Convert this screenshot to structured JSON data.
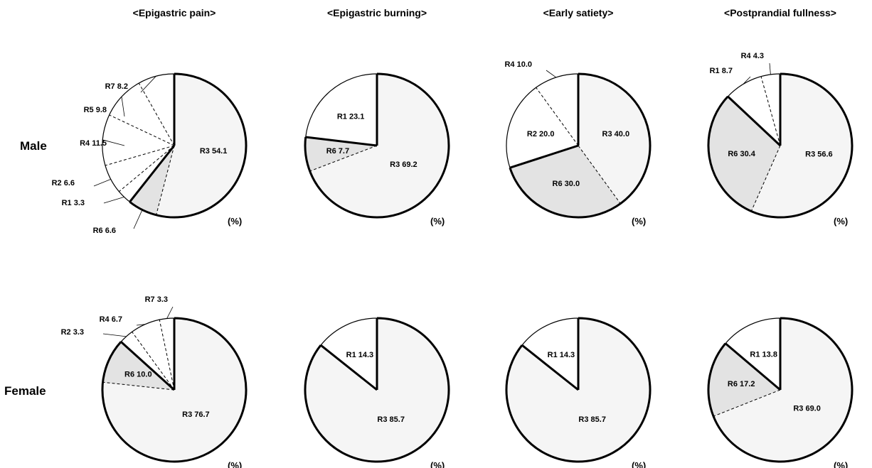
{
  "row_labels": [
    "Male",
    "Female"
  ],
  "column_titles": [
    "<Epigastric pain>",
    "<Epigastric burning>",
    "<Early satiety>",
    "<Postprandial fullness>"
  ],
  "unit_label": "(%)",
  "colors": {
    "R3": "#f5f5f5",
    "R6": "#e3e3e3",
    "other": "#ffffff",
    "outline": "#000000"
  },
  "chart_data": [
    {
      "type": "pie",
      "row": "Male",
      "title": "<Epigastric pain>",
      "slices": [
        {
          "label": "R3",
          "value": 54.1
        },
        {
          "label": "R6",
          "value": 6.6
        },
        {
          "label": "R1",
          "value": 3.3
        },
        {
          "label": "R2",
          "value": 6.6
        },
        {
          "label": "R4",
          "value": 11.5
        },
        {
          "label": "R5",
          "value": 9.8
        },
        {
          "label": "R7",
          "value": 8.2
        }
      ]
    },
    {
      "type": "pie",
      "row": "Male",
      "title": "<Epigastric burning>",
      "slices": [
        {
          "label": "R3",
          "value": 69.2
        },
        {
          "label": "R6",
          "value": 7.7
        },
        {
          "label": "R1",
          "value": 23.1
        }
      ]
    },
    {
      "type": "pie",
      "row": "Male",
      "title": "<Early satiety>",
      "slices": [
        {
          "label": "R3",
          "value": 40.0
        },
        {
          "label": "R6",
          "value": 30.0
        },
        {
          "label": "R2",
          "value": 20.0
        },
        {
          "label": "R4",
          "value": 10.0
        }
      ]
    },
    {
      "type": "pie",
      "row": "Male",
      "title": "<Postprandial fullness>",
      "slices": [
        {
          "label": "R3",
          "value": 56.6
        },
        {
          "label": "R6",
          "value": 30.4
        },
        {
          "label": "R1",
          "value": 8.7
        },
        {
          "label": "R4",
          "value": 4.3
        }
      ]
    },
    {
      "type": "pie",
      "row": "Female",
      "title": "<Epigastric pain>",
      "slices": [
        {
          "label": "R3",
          "value": 76.7
        },
        {
          "label": "R6",
          "value": 10.0
        },
        {
          "label": "R2",
          "value": 3.3
        },
        {
          "label": "R4",
          "value": 6.7
        },
        {
          "label": "R7",
          "value": 3.3
        }
      ]
    },
    {
      "type": "pie",
      "row": "Female",
      "title": "<Epigastric burning>",
      "slices": [
        {
          "label": "R3",
          "value": 85.7
        },
        {
          "label": "R1",
          "value": 14.3
        }
      ]
    },
    {
      "type": "pie",
      "row": "Female",
      "title": "<Early satiety>",
      "slices": [
        {
          "label": "R3",
          "value": 85.7
        },
        {
          "label": "R1",
          "value": 14.3
        }
      ]
    },
    {
      "type": "pie",
      "row": "Female",
      "title": "<Postprandial fullness>",
      "slices": [
        {
          "label": "R3",
          "value": 69.0
        },
        {
          "label": "R6",
          "value": 17.2
        },
        {
          "label": "R1",
          "value": 13.8
        }
      ]
    }
  ]
}
